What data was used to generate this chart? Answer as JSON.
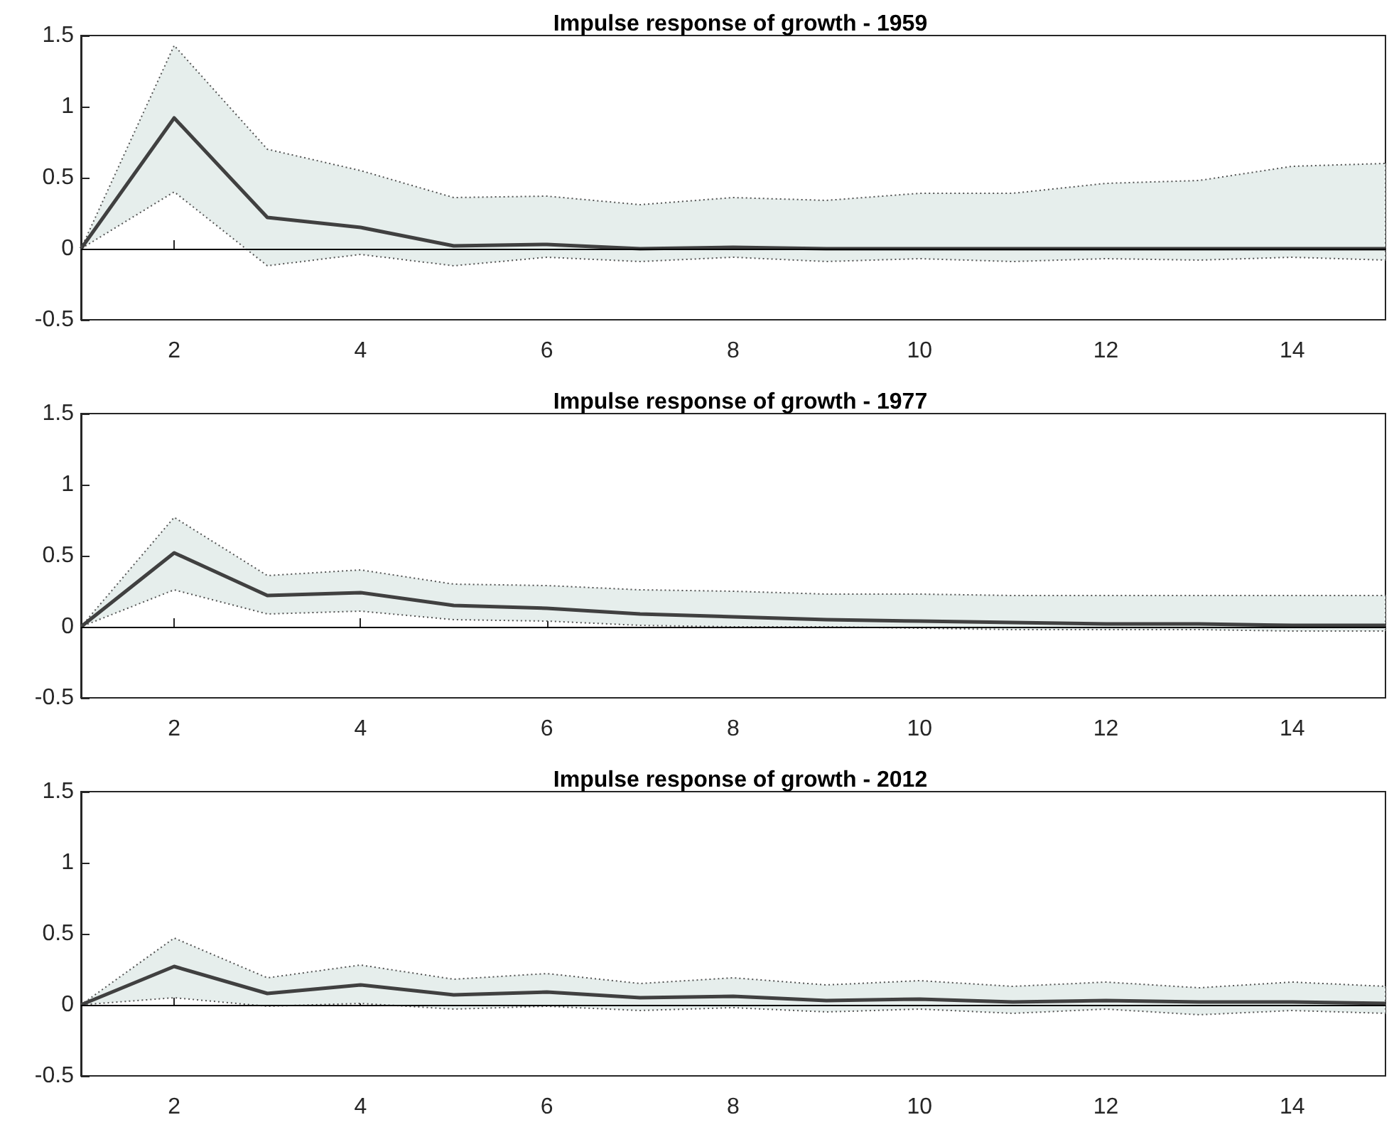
{
  "chart_data": [
    {
      "type": "line",
      "title": "Impulse response of growth - 1959",
      "x": [
        1,
        2,
        3,
        4,
        5,
        6,
        7,
        8,
        9,
        10,
        11,
        12,
        13,
        14,
        15
      ],
      "xlim": [
        1,
        15
      ],
      "xticks": [
        2,
        4,
        6,
        8,
        10,
        12,
        14
      ],
      "ylim": [
        -0.5,
        1.5
      ],
      "yticks": [
        -0.5,
        0,
        0.5,
        1,
        1.5
      ],
      "grid": false,
      "ref_lines": [
        {
          "axis": "y",
          "value": 0,
          "color": "#000000"
        }
      ],
      "series": [
        {
          "color": "#404040",
          "values": [
            0,
            0.92,
            0.22,
            0.15,
            0.02,
            0.03,
            0.0,
            0.01,
            0.0,
            0.0,
            0.0,
            0.0,
            0.0,
            0.0,
            0.0
          ],
          "lower": [
            0,
            0.4,
            -0.12,
            -0.04,
            -0.12,
            -0.06,
            -0.09,
            -0.06,
            -0.09,
            -0.07,
            -0.09,
            -0.07,
            -0.08,
            -0.06,
            -0.08
          ],
          "upper": [
            0,
            1.43,
            0.7,
            0.55,
            0.36,
            0.37,
            0.31,
            0.36,
            0.34,
            0.39,
            0.39,
            0.46,
            0.48,
            0.58,
            0.6
          ]
        }
      ]
    },
    {
      "type": "line",
      "title": "Impulse response of growth - 1977",
      "x": [
        1,
        2,
        3,
        4,
        5,
        6,
        7,
        8,
        9,
        10,
        11,
        12,
        13,
        14,
        15
      ],
      "xlim": [
        1,
        15
      ],
      "xticks": [
        2,
        4,
        6,
        8,
        10,
        12,
        14
      ],
      "ylim": [
        -0.5,
        1.5
      ],
      "yticks": [
        -0.5,
        0,
        0.5,
        1,
        1.5
      ],
      "grid": false,
      "ref_lines": [
        {
          "axis": "y",
          "value": 0,
          "color": "#000000"
        }
      ],
      "series": [
        {
          "color": "#404040",
          "values": [
            0,
            0.52,
            0.22,
            0.24,
            0.15,
            0.13,
            0.09,
            0.07,
            0.05,
            0.04,
            0.03,
            0.02,
            0.02,
            0.01,
            0.01
          ],
          "lower": [
            0,
            0.26,
            0.09,
            0.11,
            0.05,
            0.04,
            0.01,
            0.0,
            0.0,
            -0.01,
            -0.02,
            -0.02,
            -0.02,
            -0.03,
            -0.03
          ],
          "upper": [
            0,
            0.77,
            0.36,
            0.4,
            0.3,
            0.29,
            0.26,
            0.25,
            0.23,
            0.23,
            0.22,
            0.22,
            0.22,
            0.22,
            0.22
          ]
        }
      ]
    },
    {
      "type": "line",
      "title": "Impulse response of growth - 2012",
      "x": [
        1,
        2,
        3,
        4,
        5,
        6,
        7,
        8,
        9,
        10,
        11,
        12,
        13,
        14,
        15
      ],
      "xlim": [
        1,
        15
      ],
      "xticks": [
        2,
        4,
        6,
        8,
        10,
        12,
        14
      ],
      "ylim": [
        -0.5,
        1.5
      ],
      "yticks": [
        -0.5,
        0,
        0.5,
        1,
        1.5
      ],
      "grid": false,
      "ref_lines": [
        {
          "axis": "y",
          "value": 0,
          "color": "#000000"
        }
      ],
      "series": [
        {
          "color": "#404040",
          "values": [
            0,
            0.27,
            0.08,
            0.14,
            0.07,
            0.09,
            0.05,
            0.06,
            0.03,
            0.04,
            0.02,
            0.03,
            0.02,
            0.02,
            0.01
          ],
          "lower": [
            0,
            0.05,
            -0.01,
            0.01,
            -0.03,
            -0.01,
            -0.04,
            -0.02,
            -0.05,
            -0.03,
            -0.06,
            -0.03,
            -0.07,
            -0.04,
            -0.06
          ],
          "upper": [
            0,
            0.47,
            0.19,
            0.28,
            0.18,
            0.22,
            0.15,
            0.19,
            0.14,
            0.17,
            0.13,
            0.16,
            0.12,
            0.16,
            0.13
          ]
        }
      ]
    }
  ]
}
